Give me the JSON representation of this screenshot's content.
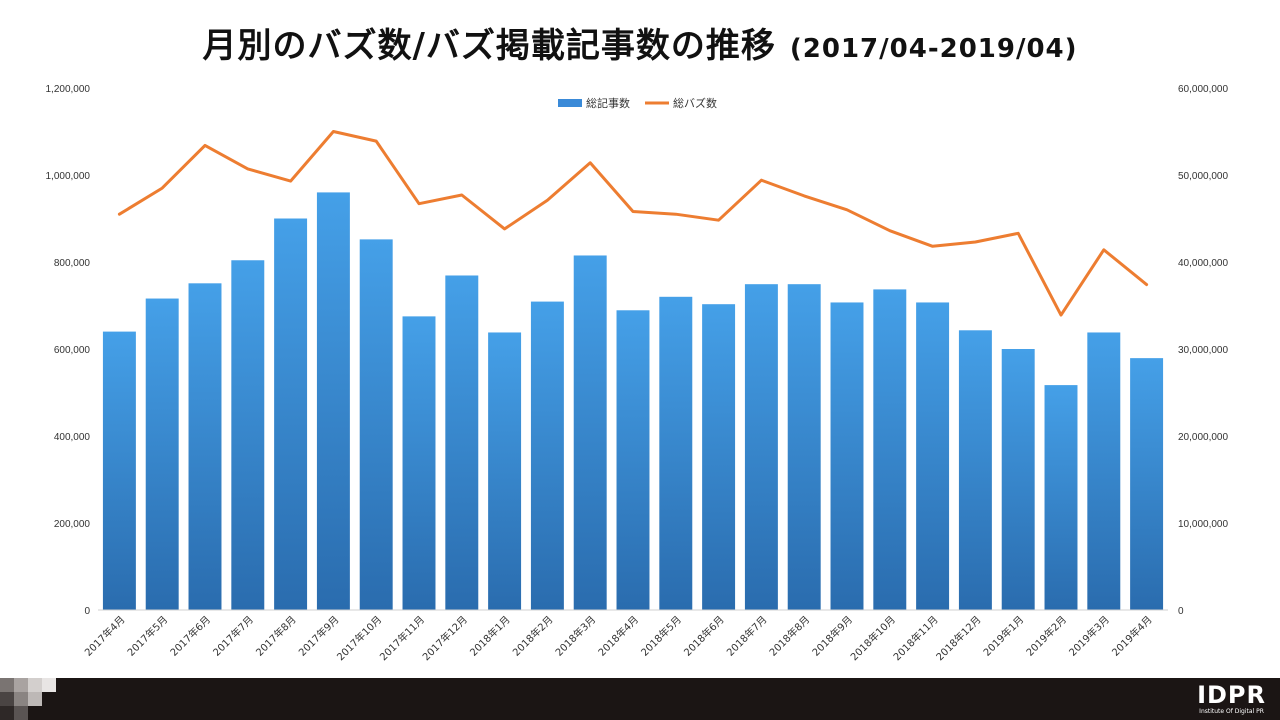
{
  "header": {
    "title": "月別のバズ数/バズ掲載記事数の推移",
    "period": "(2017/04-2019/04)"
  },
  "chart_data": {
    "type": "bar",
    "categories": [
      "2017年4月",
      "2017年5月",
      "2017年6月",
      "2017年7月",
      "2017年8月",
      "2017年9月",
      "2017年10月",
      "2017年11月",
      "2017年12月",
      "2018年1月",
      "2018年2月",
      "2018年3月",
      "2018年4月",
      "2018年5月",
      "2018年6月",
      "2018年7月",
      "2018年8月",
      "2018年9月",
      "2018年10月",
      "2018年11月",
      "2018年12月",
      "2019年1月",
      "2019年2月",
      "2019年3月",
      "2019年4月"
    ],
    "series": [
      {
        "name": "総記事数",
        "type": "bar",
        "axis": "left",
        "color": "#3a8ad8",
        "values": [
          640000,
          716000,
          751000,
          804000,
          900000,
          960000,
          852000,
          675000,
          769000,
          638000,
          709000,
          815000,
          689000,
          720000,
          703000,
          749000,
          749000,
          707000,
          737000,
          707000,
          643000,
          600000,
          517000,
          638000,
          579000
        ]
      },
      {
        "name": "総バズ数",
        "type": "line",
        "axis": "right",
        "color": "#ed7d31",
        "values": [
          45500000,
          48500000,
          53400000,
          50700000,
          49300000,
          55000000,
          53900000,
          46700000,
          47700000,
          43800000,
          47100000,
          51400000,
          45800000,
          45500000,
          44800000,
          49400000,
          47600000,
          46000000,
          43600000,
          41800000,
          42300000,
          43300000,
          33900000,
          41400000,
          37400000
        ]
      }
    ],
    "ylim_left": [
      0,
      1200000
    ],
    "ylim_right": [
      0,
      60000000
    ],
    "yticks_left": [
      "0",
      "200,000",
      "400,000",
      "600,000",
      "800,000",
      "1,000,000",
      "1,200,000"
    ],
    "yticks_right": [
      "0",
      "10,000,000",
      "20,000,000",
      "30,000,000",
      "40,000,000",
      "50,000,000",
      "60,000,000"
    ],
    "legend": {
      "position": "top-center"
    },
    "grid": false
  },
  "brand": {
    "logo_text": "IDPR",
    "tagline": "Institute Of Digital PR"
  }
}
